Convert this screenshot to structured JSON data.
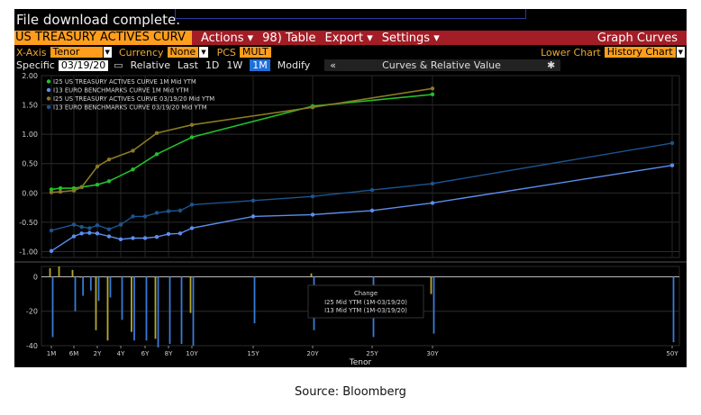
{
  "terminal": {
    "message": "File download complete.",
    "security": "US TREASURY ACTIVES CURV",
    "menu": [
      "Actions ▾",
      "98) Table",
      "Export ▾",
      "Settings ▾"
    ],
    "menu_right": "Graph Curves",
    "xaxis_label": "X-Axis",
    "xaxis_value": "Tenor",
    "currency_label": "Currency",
    "currency_value": "None",
    "pcs_label": "PCS",
    "pcs_value": "MULT",
    "lower_chart_label": "Lower Chart",
    "lower_chart_value": "History Chart",
    "specific_label": "Specific",
    "specific_date": "03/19/20",
    "buttons": [
      "Relative",
      "Last",
      "1D",
      "1W",
      "1M",
      "Modify"
    ],
    "active_button": "1M",
    "curves_bar_left": "«",
    "curves_bar_label": "Curves & Relative Value",
    "curves_bar_icon": "gear-icon"
  },
  "chart_data": {
    "type": "line",
    "xlabel": "Tenor",
    "x_ticks": [
      "1M",
      "6M",
      "2Y",
      "4Y",
      "6Y",
      "8Y",
      "10Y",
      "15Y",
      "20Y",
      "25Y",
      "30Y",
      "50Y"
    ],
    "x_tick_years": [
      0.083,
      0.5,
      2,
      4,
      6,
      8,
      10,
      15,
      20,
      25,
      30,
      50
    ],
    "y_ticks": [
      "2.00",
      "1.50",
      "1.00",
      "0.50",
      "0.00",
      "-0.50",
      "-1.00"
    ],
    "ylim": [
      -1.1,
      2.0
    ],
    "grid": true,
    "legend_position": "top-left",
    "series": [
      {
        "name": "I25 US TREASURY ACTIVES CURVE 1M Mid YTM",
        "color": "#22c02a",
        "style": "solid",
        "markers": true,
        "x": [
          0.083,
          0.25,
          0.5,
          1,
          2,
          3,
          5,
          7,
          10,
          20,
          30
        ],
        "y": [
          0.06,
          0.08,
          0.08,
          0.1,
          0.14,
          0.2,
          0.4,
          0.66,
          0.95,
          1.48,
          1.68
        ]
      },
      {
        "name": "I13 EURO BENCHMARKS CURVE 1M Mid YTM",
        "color": "#5b8ef0",
        "style": "solid",
        "markers": true,
        "x": [
          0.083,
          0.5,
          1,
          1.5,
          2,
          3,
          4,
          5,
          6,
          7,
          8,
          9,
          10,
          15,
          20,
          25,
          30,
          50
        ],
        "y": [
          -0.99,
          -0.74,
          -0.69,
          -0.68,
          -0.69,
          -0.74,
          -0.79,
          -0.77,
          -0.77,
          -0.75,
          -0.7,
          -0.69,
          -0.6,
          -0.4,
          -0.37,
          -0.3,
          -0.17,
          0.47
        ]
      },
      {
        "name": "I25 US TREASURY ACTIVES CURVE 03/19/20 Mid YTM",
        "color": "#8a7a22",
        "style": "solid",
        "markers": true,
        "x": [
          0.083,
          0.25,
          0.5,
          1,
          2,
          3,
          5,
          7,
          10,
          20,
          30
        ],
        "y": [
          0.01,
          0.02,
          0.04,
          0.1,
          0.45,
          0.57,
          0.72,
          1.02,
          1.16,
          1.46,
          1.78
        ]
      },
      {
        "name": "I13 EURO BENCHMARKS CURVE 03/19/20 Mid YTM",
        "color": "#1c5490",
        "style": "solid",
        "markers": true,
        "x": [
          0.083,
          0.5,
          1,
          1.5,
          2,
          3,
          4,
          5,
          6,
          7,
          8,
          9,
          10,
          15,
          20,
          25,
          30,
          50
        ],
        "y": [
          -0.64,
          -0.54,
          -0.58,
          -0.6,
          -0.55,
          -0.62,
          -0.54,
          -0.4,
          -0.4,
          -0.34,
          -0.31,
          -0.3,
          -0.2,
          -0.13,
          -0.06,
          0.05,
          0.16,
          0.85
        ]
      }
    ],
    "lower_chart": {
      "y_ticks": [
        "0",
        "-20",
        "-40"
      ],
      "ylim": [
        -40,
        6
      ],
      "legend_title": "Change",
      "legend_items": [
        "I25 Mid YTM (1M-03/19/20)",
        "I13 Mid YTM (1M-03/19/20)"
      ],
      "series": [
        {
          "name": "I25 Mid YTM (1M-03/19/20)",
          "color": "#b8a82e",
          "x": [
            0.083,
            0.25,
            0.5,
            1,
            2,
            3,
            5,
            7,
            10,
            20,
            30
          ],
          "y": [
            5,
            6,
            4,
            0,
            -31,
            -37,
            -32,
            -36,
            -21,
            2,
            -10
          ]
        },
        {
          "name": "I13 Mid YTM (1M-03/19/20)",
          "color": "#3a7ad6",
          "x": [
            0.083,
            0.5,
            1,
            1.5,
            2,
            3,
            4,
            5,
            6,
            7,
            8,
            9,
            10,
            15,
            20,
            25,
            30,
            50
          ],
          "y": [
            -35,
            -20,
            -11,
            -8,
            -14,
            -12,
            -25,
            -37,
            -37,
            -41,
            -39,
            -39,
            -40,
            -27,
            -31,
            -35,
            -33,
            -38
          ]
        }
      ]
    }
  },
  "caption": "Source: Bloomberg"
}
